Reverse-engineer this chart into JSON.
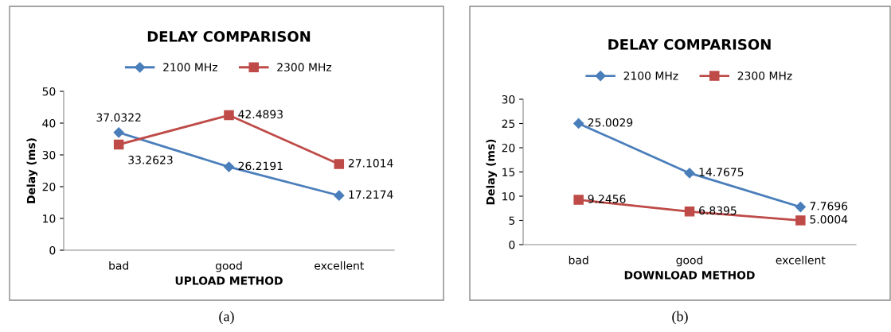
{
  "chart_data": [
    {
      "type": "line",
      "title": "DELAY COMPARISON",
      "xlabel": "UPLOAD METHOD",
      "ylabel": "Delay (ms)",
      "categories": [
        "bad",
        "good",
        "excellent"
      ],
      "series": [
        {
          "name": "2100 MHz",
          "color": "#4a7ebb",
          "marker": "diamond",
          "values": [
            37.0322,
            26.2191,
            17.2174
          ]
        },
        {
          "name": "2300 MHz",
          "color": "#be4b48",
          "marker": "square",
          "values": [
            33.2623,
            42.4893,
            27.1014
          ]
        }
      ],
      "ylim": [
        0,
        50
      ],
      "yticks": [
        0,
        10,
        20,
        30,
        40,
        50
      ],
      "grid": false,
      "legend": "top",
      "data_labels": true,
      "annotations": [
        "(a)"
      ]
    },
    {
      "type": "line",
      "title": "DELAY COMPARISON",
      "xlabel": "DOWNLOAD METHOD",
      "ylabel": "Delay (ms)",
      "categories": [
        "bad",
        "good",
        "excellent"
      ],
      "series": [
        {
          "name": "2100 MHz",
          "color": "#4a7ebb",
          "marker": "diamond",
          "values": [
            25.0029,
            14.7675,
            7.7696
          ]
        },
        {
          "name": "2300 MHz",
          "color": "#be4b48",
          "marker": "square",
          "values": [
            9.2456,
            6.8395,
            5.0004
          ]
        }
      ],
      "ylim": [
        0,
        30
      ],
      "yticks": [
        0,
        5,
        10,
        15,
        20,
        25,
        30
      ],
      "grid": false,
      "legend": "top",
      "data_labels": true,
      "annotations": [
        "(b)"
      ]
    }
  ]
}
